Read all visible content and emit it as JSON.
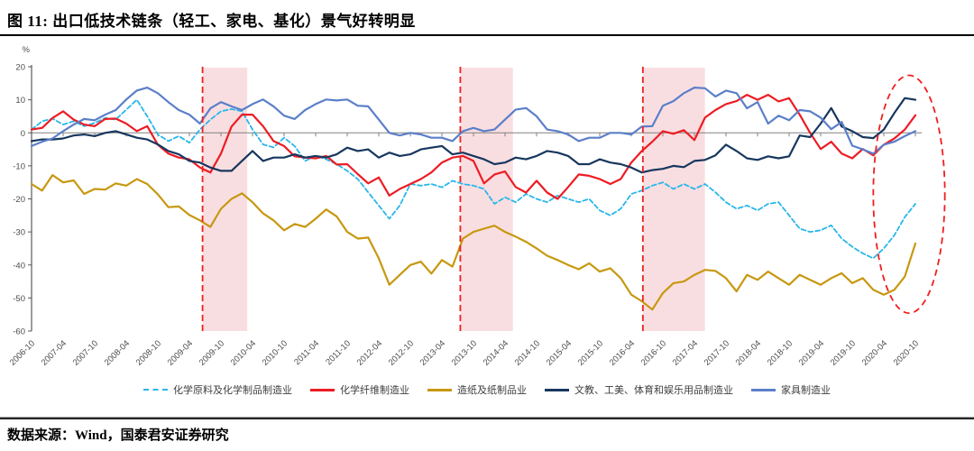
{
  "title": "图 11:  出口低技术链条（轻工、家电、基化）景气好转明显",
  "source": "数据来源：Wind，国泰君安证券研究",
  "unit_label": "%",
  "colors": {
    "band_pink": "#F9DEE1",
    "dashed_marker_red": "#F01E1E",
    "zero_axis": "#808080",
    "y_axis": "#595959",
    "tick_text": "#4d4d4d",
    "legend_text": "#404040",
    "rule_black": "#000000"
  },
  "chart_data": {
    "type": "line",
    "title": "图 11:  出口低技术链条（轻工、家电、基化）景气好转明显",
    "ylabel": "%",
    "ylim": [
      -60,
      20
    ],
    "yticks": [
      20,
      10,
      0,
      -10,
      -20,
      -30,
      -40,
      -50,
      -60
    ],
    "grid": false,
    "zero_line": true,
    "legend_position": "bottom",
    "x_total_months": 168,
    "x_months_per_point": 2,
    "x_tick_every_months": 6,
    "x_tick_labels": [
      "2006-10",
      "2007-04",
      "2007-10",
      "2008-04",
      "2008-10",
      "2009-04",
      "2009-10",
      "2010-04",
      "2010-10",
      "2011-04",
      "2011-10",
      "2012-04",
      "2012-10",
      "2013-04",
      "2013-10",
      "2014-04",
      "2014-10",
      "2015-04",
      "2015-10",
      "2016-04",
      "2016-10",
      "2017-04",
      "2017-10",
      "2018-04",
      "2018-10",
      "2019-04",
      "2019-10",
      "2020-04",
      "2020-10"
    ],
    "highlight_bands_months": [
      [
        32.5,
        41
      ],
      [
        81.5,
        91.5
      ],
      [
        116.2,
        128
      ]
    ],
    "dashed_vlines_months": [
      32.5,
      81.5,
      116.2
    ],
    "ellipse_annotation": {
      "center_month": 166.8,
      "center_value": -18.6,
      "radius_months": 6.8,
      "radius_value": 36
    },
    "series": [
      {
        "name": "化学原料及化学制品制造业",
        "color": "#29B6EA",
        "dash": true,
        "values": [
          1,
          3.5,
          4.3,
          2.5,
          3.5,
          2,
          3,
          4.5,
          4,
          7,
          10,
          5,
          -0.5,
          -2.5,
          -1,
          -3,
          1,
          4,
          6.5,
          7.2,
          6.5,
          1,
          -3.5,
          -4.4,
          -1.5,
          -4,
          -8.5,
          -7,
          -8,
          -9.5,
          -11.5,
          -14,
          -18,
          -22,
          -26,
          -22,
          -15.5,
          -16,
          -15.5,
          -16.5,
          -14.5,
          -15.5,
          -16,
          -17,
          -21.5,
          -19.5,
          -21,
          -18.5,
          -20,
          -21,
          -19,
          -20,
          -21,
          -20,
          -23.5,
          -25,
          -23,
          -18.5,
          -17.5,
          -16,
          -15,
          -17,
          -15.5,
          -17,
          -15.5,
          -18,
          -21,
          -23,
          -22,
          -23.5,
          -21.5,
          -21,
          -25,
          -29,
          -30,
          -29.5,
          -28,
          -32,
          -34.5,
          -36.5,
          -38,
          -35,
          -31,
          -25.5,
          -21.5
        ]
      },
      {
        "name": "化学纤维制造业",
        "color": "#ED1C24",
        "dash": false,
        "values": [
          1,
          1.5,
          4.5,
          6.5,
          4,
          2.5,
          2,
          4.2,
          4.3,
          2.8,
          0.5,
          2,
          -3.6,
          -6.3,
          -7.5,
          -8,
          -10.5,
          -12,
          -6.3,
          1.9,
          5.5,
          5.5,
          2,
          -2.5,
          -4,
          -7.1,
          -7.5,
          -7.7,
          -7,
          -9.6,
          -9.5,
          -12.5,
          -15.3,
          -13.5,
          -19,
          -17,
          -15.5,
          -14,
          -12,
          -9,
          -7.5,
          -7,
          -8.5,
          -15.3,
          -12.6,
          -11.7,
          -16.4,
          -18.1,
          -14.5,
          -18.1,
          -20,
          -16.4,
          -12.6,
          -13,
          -14,
          -15.5,
          -14,
          -9,
          -5.5,
          -2.7,
          0.5,
          -0.3,
          0.8,
          -2.2,
          4.6,
          6.9,
          8.7,
          9.6,
          11.5,
          10,
          11.5,
          9.5,
          10.5,
          5.5,
          0,
          -4.9,
          -2.7,
          -6.3,
          -7.7,
          -4.9,
          -6.8,
          -3.6,
          -1.7,
          1,
          5.3
        ]
      },
      {
        "name": "造纸及纸制品业",
        "color": "#C79810",
        "dash": false,
        "values": [
          -15.5,
          -17.5,
          -12.8,
          -15,
          -14.4,
          -18.5,
          -17,
          -17.2,
          -15.3,
          -16,
          -14,
          -15.5,
          -18.6,
          -22.5,
          -22.3,
          -24.9,
          -26.5,
          -28.5,
          -23,
          -20,
          -18.3,
          -21,
          -24.4,
          -26.5,
          -29.5,
          -27.6,
          -28.5,
          -26,
          -23.2,
          -25.3,
          -30,
          -32,
          -31.7,
          -38,
          -46,
          -43,
          -40,
          -39,
          -42.6,
          -38.5,
          -40.5,
          -32,
          -30,
          -29,
          -28.1,
          -30,
          -31.4,
          -33,
          -35,
          -37.2,
          -38.5,
          -40,
          -41.3,
          -39.5,
          -42,
          -41,
          -44,
          -49,
          -51,
          -53.5,
          -48.5,
          -45.5,
          -45,
          -43,
          -41.5,
          -41.8,
          -44,
          -48,
          -43,
          -44.5,
          -42,
          -44,
          -46,
          -43,
          -44.5,
          -46,
          -44,
          -42.5,
          -45.5,
          -44,
          -47.5,
          -49,
          -47.5,
          -43.5,
          -33.5
        ]
      },
      {
        "name": "文教、工美、体育和娱乐用品制造业",
        "color": "#17375E",
        "dash": false,
        "values": [
          -2.5,
          -2,
          -2,
          -1.7,
          -0.8,
          -0.5,
          -1,
          0,
          0.5,
          -0.5,
          -1.5,
          -2,
          -3.5,
          -5.5,
          -6.5,
          -8.5,
          -9,
          -10.5,
          -11.5,
          -11.5,
          -8.5,
          -5.5,
          -8.5,
          -7.5,
          -7.5,
          -6.5,
          -7.5,
          -7,
          -7.5,
          -6.5,
          -4.5,
          -5.5,
          -5,
          -7.5,
          -6,
          -7,
          -6.5,
          -5,
          -4.5,
          -4,
          -6.5,
          -6,
          -7,
          -8,
          -9.5,
          -9,
          -7.5,
          -8,
          -7,
          -5.5,
          -6,
          -7,
          -9.5,
          -9.5,
          -8,
          -9,
          -9.5,
          -10.5,
          -12,
          -11.3,
          -10.9,
          -10,
          -10.4,
          -8.5,
          -8.2,
          -6.8,
          -3.6,
          -5.5,
          -7.7,
          -8.2,
          -7.1,
          -7.7,
          -7.1,
          -0.8,
          -1.3,
          2.8,
          7.5,
          1.9,
          0.5,
          -1.3,
          -1.6,
          1,
          6,
          10.5,
          10
        ]
      },
      {
        "name": "家具制造业",
        "color": "#5B7FC9",
        "dash": false,
        "values": [
          -4,
          -2.7,
          -1.7,
          0.5,
          2.5,
          4.2,
          3.8,
          5.5,
          6.9,
          10.1,
          12.8,
          13.7,
          12,
          9.3,
          6.9,
          5.5,
          2.8,
          7.4,
          9.3,
          8,
          6.9,
          8.7,
          10.1,
          8,
          5.2,
          4.2,
          6.9,
          8.7,
          10.1,
          9.8,
          10.1,
          8.2,
          8,
          4,
          0,
          -0.8,
          0,
          -0.5,
          -1.5,
          -1.5,
          -2.5,
          0.5,
          1.5,
          0.5,
          1,
          4,
          7,
          7.5,
          5,
          1,
          0.5,
          -0.5,
          -2.5,
          -1.5,
          -1.5,
          0,
          0,
          -0.5,
          1.9,
          2,
          8.2,
          9.6,
          12,
          13.7,
          13.5,
          11,
          12.8,
          12,
          7.4,
          9.3,
          2.8,
          5.2,
          3.8,
          6.9,
          6.5,
          4.6,
          1.1,
          3.3,
          -3.9,
          -5,
          -6.3,
          -3.6,
          -2.7,
          -1,
          0.5
        ]
      }
    ]
  }
}
